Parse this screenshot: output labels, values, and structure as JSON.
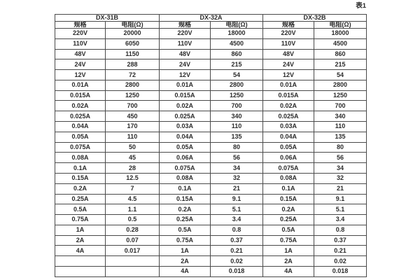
{
  "caption": "表1",
  "table": {
    "groups": [
      {
        "model": "DX-31B",
        "spec_header": "规格",
        "resistance_header": "电阻(Ω)"
      },
      {
        "model": "DX-32A",
        "spec_header": "规格",
        "resistance_header": "电阻(Ω)"
      },
      {
        "model": "DX-32B",
        "spec_header": "规格",
        "resistance_header": "电阻(Ω)"
      }
    ],
    "rows": [
      [
        "220V",
        "20000",
        "220V",
        "18000",
        "220V",
        "18000"
      ],
      [
        "110V",
        "6050",
        "110V",
        "4500",
        "110V",
        "4500"
      ],
      [
        "48V",
        "1150",
        "48V",
        "860",
        "48V",
        "860"
      ],
      [
        "24V",
        "288",
        "24V",
        "215",
        "24V",
        "215"
      ],
      [
        "12V",
        "72",
        "12V",
        "54",
        "12V",
        "54"
      ],
      [
        "0.01A",
        "2800",
        "0.01A",
        "2800",
        "0.01A",
        "2800"
      ],
      [
        "0.015A",
        "1250",
        "0.015A",
        "1250",
        "0.015A",
        "1250"
      ],
      [
        "0.02A",
        "700",
        "0.02A",
        "700",
        "0.02A",
        "700"
      ],
      [
        "0.025A",
        "450",
        "0.025A",
        "340",
        "0.025A",
        "340"
      ],
      [
        "0.04A",
        "170",
        "0.03A",
        "110",
        "0.03A",
        "110"
      ],
      [
        "0.05A",
        "110",
        "0.04A",
        "135",
        "0.04A",
        "135"
      ],
      [
        "0.075A",
        "50",
        "0.05A",
        "80",
        "0.05A",
        "80"
      ],
      [
        "0.08A",
        "45",
        "0.06A",
        "56",
        "0.06A",
        "56"
      ],
      [
        "0.1A",
        "28",
        "0.075A",
        "34",
        "0.075A",
        "34"
      ],
      [
        "0.15A",
        "12.5",
        "0.08A",
        "32",
        "0.08A",
        "32"
      ],
      [
        "0.2A",
        "7",
        "0.1A",
        "21",
        "0.1A",
        "21"
      ],
      [
        "0.25A",
        "4.5",
        "0.15A",
        "9.1",
        "0.15A",
        "9.1"
      ],
      [
        "0.5A",
        "1.1",
        "0.2A",
        "5.1",
        "0.2A",
        "5.1"
      ],
      [
        "0.75A",
        "0.5",
        "0.25A",
        "3.4",
        "0.25A",
        "3.4"
      ],
      [
        "1A",
        "0.28",
        "0.5A",
        "0.8",
        "0.5A",
        "0.8"
      ],
      [
        "2A",
        "0.07",
        "0.75A",
        "0.37",
        "0.75A",
        "0.37"
      ],
      [
        "4A",
        "0.017",
        "1A",
        "0.21",
        "1A",
        "0.21"
      ],
      [
        "",
        "",
        "2A",
        "0.02",
        "2A",
        "0.02"
      ],
      [
        "",
        "",
        "4A",
        "0.018",
        "4A",
        "0.018"
      ]
    ]
  }
}
